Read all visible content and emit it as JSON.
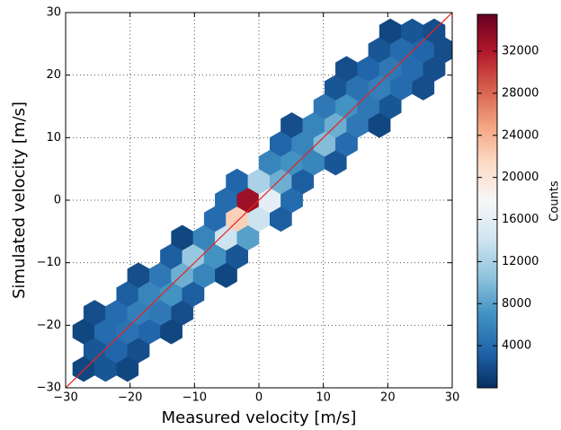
{
  "chart_data": {
    "type": "hexbin",
    "xlabel": "Measured velocity [m/s]",
    "ylabel": "Simulated velocity [m/s]",
    "colorbar_label": "Counts",
    "xlim": [
      -30,
      30
    ],
    "ylim": [
      -30,
      30
    ],
    "xticks": [
      {
        "value": -30,
        "label": "−30"
      },
      {
        "value": -20,
        "label": "−20"
      },
      {
        "value": -10,
        "label": "−10"
      },
      0,
      10,
      20,
      30
    ],
    "yticks": [
      {
        "value": -30,
        "label": "−30"
      },
      {
        "value": -20,
        "label": "−20"
      },
      {
        "value": -10,
        "label": "−10"
      },
      0,
      10,
      20,
      30
    ],
    "grid": true,
    "clim": [
      0,
      35500
    ],
    "cticks": [
      4000,
      8000,
      12000,
      16000,
      20000,
      24000,
      28000,
      32000
    ],
    "colormap": [
      "#053061",
      "#2166ac",
      "#4393c3",
      "#92c5de",
      "#d1e5f0",
      "#f7f7f7",
      "#fddbc7",
      "#f4a582",
      "#d6604d",
      "#b2182b",
      "#67001f"
    ],
    "x": [
      -27.2,
      -23.8,
      -20.4,
      -25.5,
      -22.1,
      -18.7,
      -27.2,
      -23.8,
      -20.4,
      -17,
      -13.6,
      -25.5,
      -22.1,
      -18.7,
      -15.3,
      -11.9,
      -20.4,
      -17,
      -13.6,
      -10.2,
      -18.7,
      -15.3,
      -11.9,
      -8.5,
      -5.1,
      -13.6,
      -10.2,
      -6.8,
      -3.4,
      -11.9,
      -8.5,
      -5.1,
      -1.7,
      -6.8,
      -3.4,
      0,
      3.4,
      -5.1,
      -1.7,
      1.7,
      5.1,
      -3.4,
      0,
      3.4,
      6.8,
      1.7,
      5.1,
      8.5,
      11.9,
      3.4,
      6.8,
      10.2,
      13.6,
      5.1,
      8.5,
      11.9,
      15.3,
      18.7,
      10.2,
      13.6,
      17,
      20.4,
      11.9,
      15.3,
      18.7,
      22.1,
      25.5,
      13.6,
      17,
      20.4,
      23.8,
      27.2,
      18.7,
      22.1,
      25.5,
      28.9,
      20.4,
      23.8,
      27.2
    ],
    "y": [
      -27,
      -27,
      -27,
      -24,
      -24,
      -24,
      -21,
      -21,
      -21,
      -21,
      -21,
      -18,
      -18,
      -18,
      -18,
      -18,
      -15,
      -15,
      -15,
      -15,
      -12,
      -12,
      -12,
      -12,
      -12,
      -9,
      -9,
      -9,
      -9,
      -6,
      -6,
      -6,
      -6,
      -3,
      -3,
      -3,
      -3,
      0,
      0,
      0,
      0,
      3,
      3,
      3,
      3,
      6,
      6,
      6,
      6,
      9,
      9,
      9,
      9,
      12,
      12,
      12,
      12,
      12,
      15,
      15,
      15,
      15,
      18,
      18,
      18,
      18,
      18,
      21,
      21,
      21,
      21,
      21,
      24,
      24,
      24,
      24,
      27,
      27,
      27
    ],
    "counts": [
      1500,
      2500,
      1500,
      2500,
      3500,
      2000,
      1500,
      4000,
      4500,
      3500,
      1500,
      2000,
      4000,
      5500,
      5000,
      2000,
      3000,
      6000,
      7000,
      3000,
      2000,
      5000,
      9000,
      6000,
      1500,
      3000,
      11000,
      7000,
      2500,
      1500,
      6000,
      14000,
      8000,
      4000,
      22000,
      14000,
      3000,
      4000,
      33000,
      16000,
      4000,
      3500,
      12000,
      9000,
      3000,
      6000,
      7000,
      6000,
      2500,
      3500,
      6000,
      10000,
      4000,
      2000,
      6000,
      9000,
      5000,
      1500,
      5000,
      7000,
      5000,
      2500,
      2500,
      4500,
      5500,
      4000,
      2000,
      2000,
      3500,
      5000,
      4000,
      2000,
      2500,
      4000,
      3500,
      2000,
      1500,
      2500,
      2000
    ],
    "reference_line": {
      "x": [
        -30,
        30
      ],
      "y": [
        -30,
        30
      ],
      "color": "#e8231f"
    }
  }
}
